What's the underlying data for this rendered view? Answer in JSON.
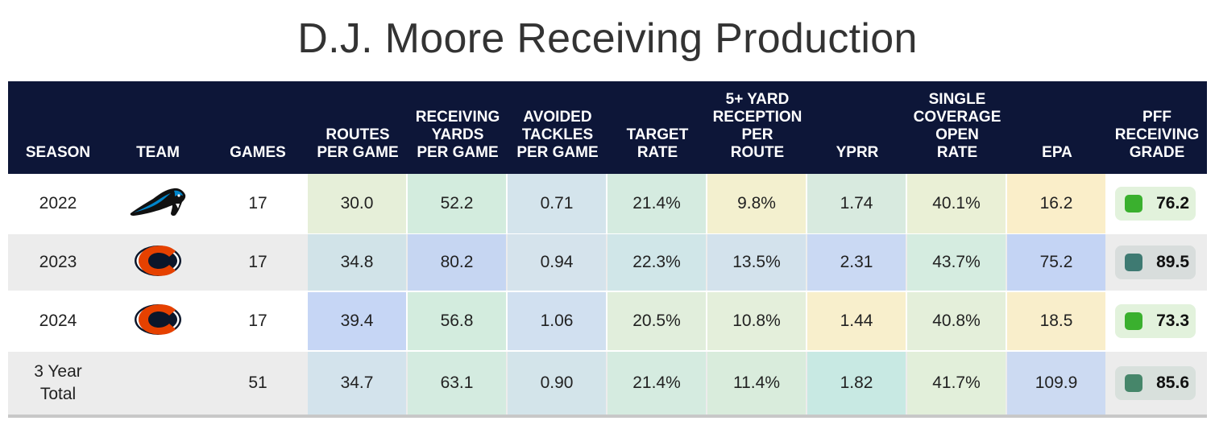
{
  "title": "D.J. Moore Receiving Production",
  "headers": [
    "SEASON",
    "TEAM",
    "GAMES",
    "ROUTES\nPER GAME",
    "RECEIVING\nYARDS\nPER GAME",
    "AVOIDED\nTACKLES\nPER GAME",
    "TARGET\nRATE",
    "5+ YARD\nRECEPTION\nPER\nROUTE",
    "YPRR",
    "SINGLE\nCOVERAGE\nOPEN\nRATE",
    "EPA",
    "PFF\nRECEIVING\nGRADE"
  ],
  "rows": [
    {
      "season": "2022",
      "team_logo": "panther-logo-icon",
      "games": "17",
      "stats": [
        "30.0",
        "52.2",
        "0.71",
        "21.4%",
        "9.8%",
        "1.74",
        "40.1%",
        "16.2"
      ],
      "stat_colors": [
        "#e6efd9",
        "#d3ecde",
        "#d4e4ec",
        "#d5ebe0",
        "#f3f0cf",
        "#d8eadf",
        "#eaf0d6",
        "#faeec9"
      ],
      "grade": "76.2",
      "grade_color": "#3ab02e",
      "grade_bg": "#e2f2dc"
    },
    {
      "season": "2023",
      "team_logo": "bears-c-logo-icon",
      "games": "17",
      "stats": [
        "34.8",
        "80.2",
        "0.94",
        "22.3%",
        "13.5%",
        "2.31",
        "43.7%",
        "75.2"
      ],
      "stat_colors": [
        "#d1e3e8",
        "#c6d6f2",
        "#d5e3ec",
        "#d0e6e8",
        "#d3e2ec",
        "#cad9f3",
        "#d5ece0",
        "#c4d4f4"
      ],
      "grade": "89.5",
      "grade_color": "#3e7a72",
      "grade_bg": "#d8dddc"
    },
    {
      "season": "2024",
      "team_logo": "bears-c-logo-icon",
      "games": "17",
      "stats": [
        "39.4",
        "56.8",
        "1.06",
        "20.5%",
        "10.8%",
        "1.44",
        "40.8%",
        "18.5"
      ],
      "stat_colors": [
        "#c6d6f5",
        "#d3ecde",
        "#d1e0f0",
        "#e1eedc",
        "#e4efdb",
        "#f8efcc",
        "#e4efda",
        "#f9eecb"
      ],
      "grade": "73.3",
      "grade_color": "#3ab02e",
      "grade_bg": "#e2f2dc"
    },
    {
      "season": "3 Year\nTotal",
      "team_logo": "",
      "games": "51",
      "stats": [
        "34.7",
        "63.1",
        "0.90",
        "21.4%",
        "11.4%",
        "1.82",
        "41.7%",
        "109.9"
      ],
      "stat_colors": [
        "#d3e3ec",
        "#d4ebe0",
        "#d3e4ea",
        "#d5ebe0",
        "#d9ecdc",
        "#c8e9e3",
        "#e2efda",
        "#ccdaf2"
      ],
      "grade": "85.6",
      "grade_color": "#46866a",
      "grade_bg": "#d8e0dc"
    }
  ]
}
